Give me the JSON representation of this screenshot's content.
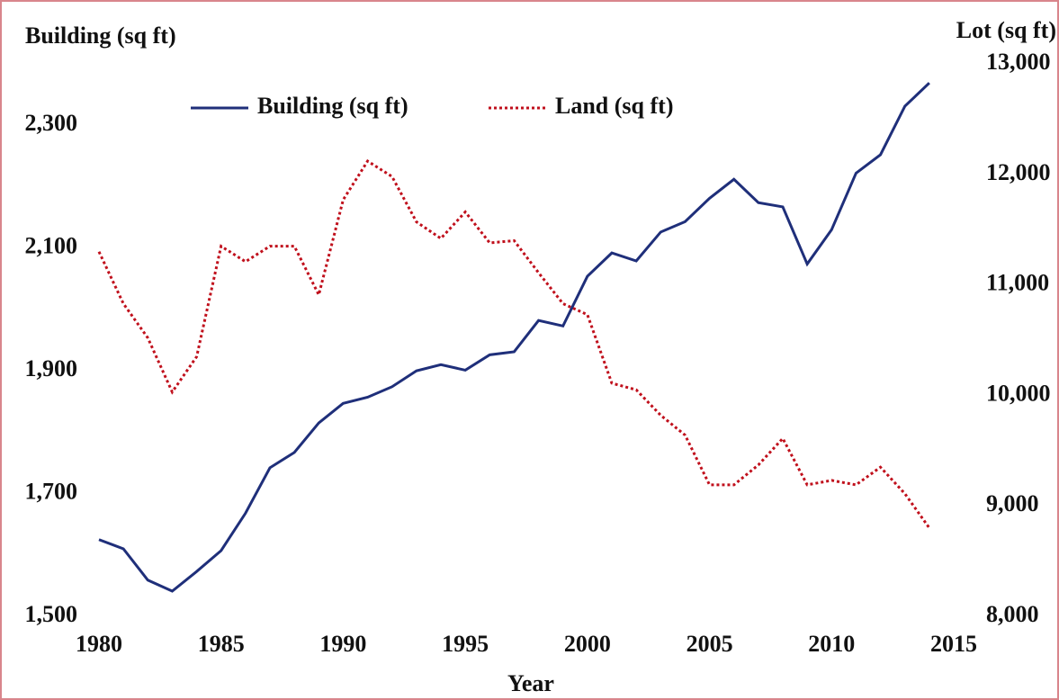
{
  "chart_data": {
    "type": "line",
    "y_label": "Building (sq ft)",
    "y2_label": "Lot (sq ft)",
    "x_label": "Year",
    "x": [
      1980,
      1981,
      1982,
      1983,
      1984,
      1985,
      1986,
      1987,
      1988,
      1989,
      1990,
      1991,
      1992,
      1993,
      1994,
      1995,
      1996,
      1997,
      1998,
      1999,
      2000,
      2001,
      2002,
      2003,
      2004,
      2005,
      2006,
      2007,
      2008,
      2009,
      2010,
      2011,
      2012,
      2013,
      2014
    ],
    "series": [
      {
        "name": "Building (sq ft)",
        "color": "#1f2f7a",
        "style": "solid",
        "values": [
          1625,
          1610,
          1559,
          1541,
          1573,
          1607,
          1668,
          1742,
          1767,
          1815,
          1847,
          1857,
          1874,
          1900,
          1910,
          1901,
          1926,
          1931,
          1982,
          1973,
          2054,
          2092,
          2079,
          2126,
          2143,
          2181,
          2212,
          2174,
          2167,
          2074,
          2130,
          2222,
          2252,
          2331,
          2369
        ]
      },
      {
        "name": "Land (sq ft)",
        "color": "#c0101c",
        "style": "dotted",
        "axis": "y2",
        "values": [
          11300,
          10830,
          10520,
          10030,
          10350,
          11350,
          11210,
          11350,
          11350,
          10910,
          11770,
          12120,
          11980,
          11570,
          11420,
          11660,
          11380,
          11400,
          11110,
          10830,
          10730,
          10110,
          10050,
          9820,
          9640,
          9190,
          9190,
          9370,
          9610,
          9190,
          9230,
          9190,
          9350,
          9110,
          8800
        ]
      }
    ],
    "xlim": [
      1980,
      2015
    ],
    "xticks": [
      1980,
      1985,
      1990,
      1995,
      2000,
      2005,
      2010,
      2015
    ],
    "ylim": [
      1500,
      2400
    ],
    "yticks": [
      {
        "value": 1500,
        "label": "1,500"
      },
      {
        "value": 1700,
        "label": "1,700"
      },
      {
        "value": 1900,
        "label": "1,900"
      },
      {
        "value": 2100,
        "label": "2,100"
      },
      {
        "value": 2300,
        "label": "2,300"
      }
    ],
    "y2lim": [
      8000,
      13000
    ],
    "y2ticks": [
      {
        "value": 8000,
        "label": "8,000"
      },
      {
        "value": 9000,
        "label": "9,000"
      },
      {
        "value": 10000,
        "label": "10,000"
      },
      {
        "value": 11000,
        "label": "11,000"
      },
      {
        "value": 12000,
        "label": "12,000"
      },
      {
        "value": 13000,
        "label": "13,000"
      }
    ],
    "grid": false,
    "legend": "top"
  }
}
